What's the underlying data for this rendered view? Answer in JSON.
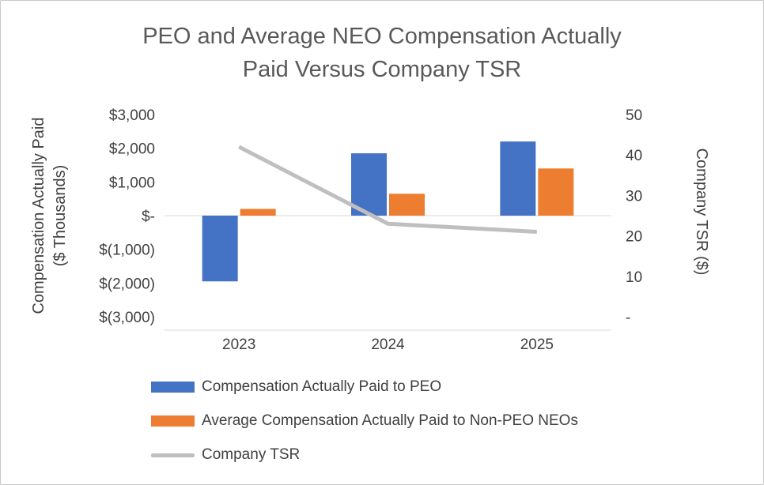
{
  "title": {
    "line1": "PEO and Average NEO Compensation Actually",
    "line2": "Paid Versus Company TSR"
  },
  "chart_data": {
    "type": "bar",
    "subtype": "combo-bar-line-dual-axis",
    "categories": [
      "2023",
      "2024",
      "2025"
    ],
    "series": [
      {
        "id": "peo",
        "name": "Compensation Actually Paid to PEO",
        "type": "bar",
        "axis": "left",
        "color": "#4472C4",
        "values": [
          -1950,
          1850,
          2200
        ]
      },
      {
        "id": "neo",
        "name": "Average Compensation Actually Paid to Non-PEO NEOs",
        "type": "bar",
        "axis": "left",
        "color": "#ED7D31",
        "values": [
          200,
          650,
          1400
        ]
      },
      {
        "id": "tsr",
        "name": "Company TSR",
        "type": "line",
        "axis": "right",
        "color": "#BFBFBF",
        "values": [
          42,
          23,
          21
        ]
      }
    ],
    "left_axis": {
      "title_line1": "Compensation Actually Paid",
      "title_line2": "($ Thousands)",
      "min": -3000,
      "max": 3000,
      "tick_labels": [
        "$3,000",
        "$2,000",
        "$1,000",
        "$-",
        "$(1,000)",
        "$(2,000)",
        "$(3,000)"
      ],
      "tick_values": [
        3000,
        2000,
        1000,
        0,
        -1000,
        -2000,
        -3000
      ]
    },
    "right_axis": {
      "title": "Company TSR ($)",
      "min": 0,
      "max": 50,
      "tick_labels": [
        "50",
        "40",
        "30",
        "20",
        "10",
        "-"
      ],
      "tick_values": [
        50,
        40,
        30,
        20,
        10,
        0
      ]
    },
    "legend_position": "bottom-left",
    "grid": false
  },
  "colors": {
    "text": "#404040",
    "title_text": "#595959",
    "axis_line": "#D9D9D9",
    "background": "#FFFFFF",
    "border": "#C8C8C8"
  }
}
